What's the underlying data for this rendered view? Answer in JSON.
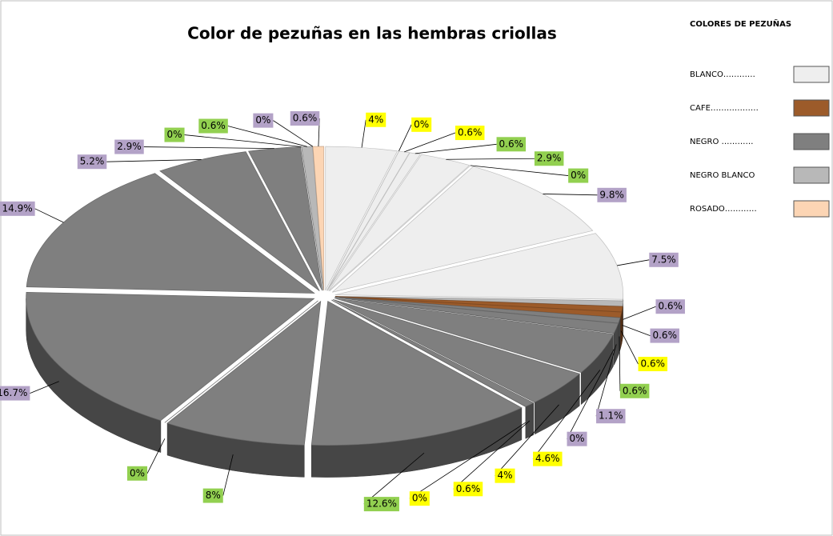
{
  "chart_data": {
    "type": "pie",
    "title": "Color de pezuñas en las hembras criollas",
    "legend": {
      "title": "COLORES DE PEZUÑAS",
      "entries": [
        {
          "name": "BLANCO…………",
          "color": "#eeeeee"
        },
        {
          "name": "CAFE………………",
          "color": "#9c5b2a"
        },
        {
          "name": "NEGRO …………",
          "color": "#7f7f7f"
        },
        {
          "name": "NEGRO  BLANCO",
          "color": "#b8b8b8"
        },
        {
          "name": "ROSADO…………",
          "color": "#fcd5b4"
        }
      ]
    },
    "values": [
      4,
      0,
      0.6,
      0.6,
      2.9,
      0,
      9.8,
      7.5,
      0.6,
      0.6,
      0.6,
      0.6,
      1.1,
      0,
      4.6,
      4,
      0.6,
      0,
      12.6,
      8,
      0,
      16.7,
      14.9,
      5.2,
      2.9,
      0,
      0.6,
      0,
      0.6
    ],
    "value_labels": [
      "4%",
      "0%",
      "0.6%",
      "0.6%",
      "2.9%",
      "0%",
      "9.8%",
      "7.5%",
      "0.6%",
      "0.6%",
      "0.6%",
      "0.6%",
      "1.1%",
      "0%",
      "4.6%",
      "4%",
      "0.6%",
      "0%",
      "12.6%",
      "8%",
      "0%",
      "16.7%",
      "14.9%",
      "5.2%",
      "2.9%",
      "0%",
      "0.6%",
      "0%",
      "0.6%"
    ],
    "colors": [
      "#eeeeee",
      "#eeeeee",
      "#eeeeee",
      "#eeeeee",
      "#eeeeee",
      "#eeeeee",
      "#eeeeee",
      "#eeeeee",
      "#b8b8b8",
      "#9c5b2a",
      "#9c5b2a",
      "#7f7f7f",
      "#7f7f7f",
      "#7f7f7f",
      "#7f7f7f",
      "#7f7f7f",
      "#7f7f7f",
      "#7f7f7f",
      "#7f7f7f",
      "#7f7f7f",
      "#7f7f7f",
      "#7f7f7f",
      "#7f7f7f",
      "#7f7f7f",
      "#7f7f7f",
      "#7f7f7f",
      "#b8b8b8",
      "#b8b8b8",
      "#fcd5b4"
    ],
    "label_colors": [
      "#ffff00",
      "#ffff00",
      "#ffff00",
      "#92d050",
      "#92d050",
      "#92d050",
      "#b3a2c7",
      "#b3a2c7",
      "#b3a2c7",
      "#b3a2c7",
      "#ffff00",
      "#92d050",
      "#b3a2c7",
      "#b3a2c7",
      "#ffff00",
      "#ffff00",
      "#ffff00",
      "#ffff00",
      "#92d050",
      "#92d050",
      "#92d050",
      "#b3a2c7",
      "#b3a2c7",
      "#b3a2c7",
      "#b3a2c7",
      "#92d050",
      "#92d050",
      "#b3a2c7",
      "#b3a2c7"
    ]
  }
}
